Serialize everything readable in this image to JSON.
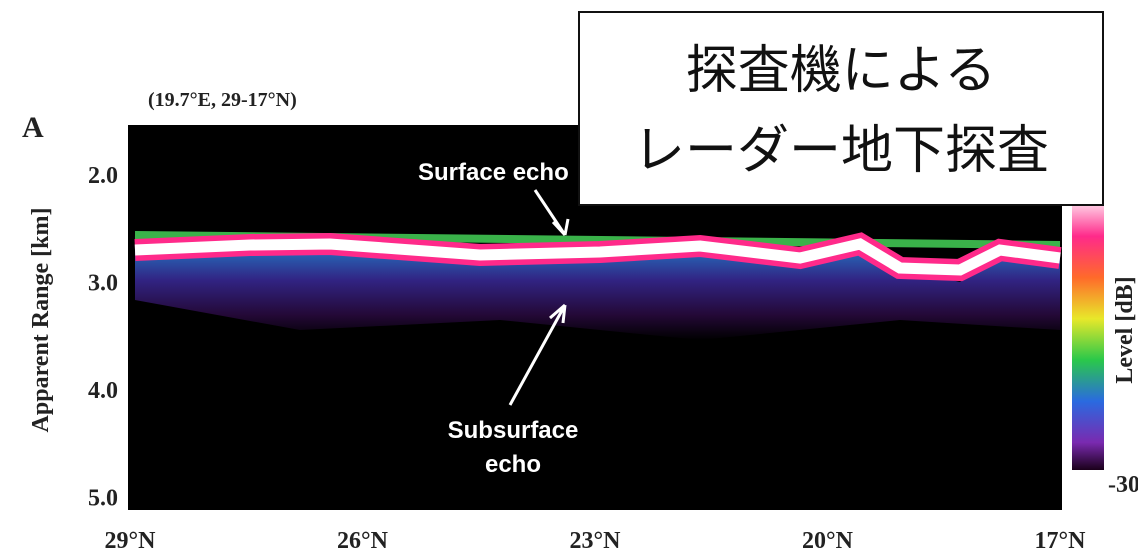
{
  "figure": {
    "panel_label": "A",
    "location": "(19.7°E, 29-17°N)",
    "y_axis_label": "Apparent Range [km]",
    "y_ticks": [
      "2.0",
      "3.0",
      "4.0",
      "5.0"
    ],
    "x_ticks": [
      "29°N",
      "26°N",
      "23°N",
      "20°N",
      "17°N"
    ],
    "colorbar_label": "Level [dB]",
    "colorbar_min": "-30",
    "annotations": {
      "surface": "Surface echo",
      "subsurface_1": "Subsurface",
      "subsurface_2": "echo"
    }
  },
  "overlay": {
    "line1": "探査機による",
    "line2": "レーダー地下探査"
  }
}
